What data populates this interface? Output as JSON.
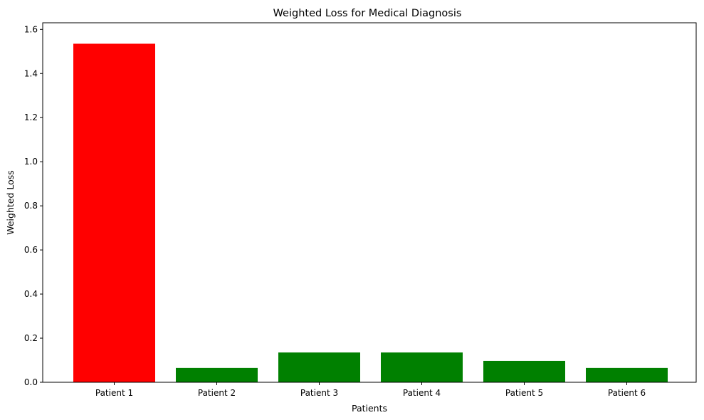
{
  "chart_data": {
    "type": "bar",
    "title": "Weighted Loss for Medical Diagnosis",
    "xlabel": "Patients",
    "ylabel": "Weighted Loss",
    "categories": [
      "Patient 1",
      "Patient 2",
      "Patient 3",
      "Patient 4",
      "Patient 5",
      "Patient 6"
    ],
    "values": [
      1.535,
      0.065,
      0.135,
      0.135,
      0.097,
      0.065
    ],
    "bar_colors": [
      "#ff0000",
      "#008000",
      "#008000",
      "#008000",
      "#008000",
      "#008000"
    ],
    "ylim": [
      0,
      1.63
    ],
    "yticks": [
      0.0,
      0.2,
      0.4,
      0.6,
      0.8,
      1.0,
      1.2,
      1.4,
      1.6
    ],
    "ytick_labels": [
      "0.0",
      "0.2",
      "0.4",
      "0.6",
      "0.8",
      "1.0",
      "1.2",
      "1.4",
      "1.6"
    ],
    "grid": false,
    "legend": "none"
  }
}
